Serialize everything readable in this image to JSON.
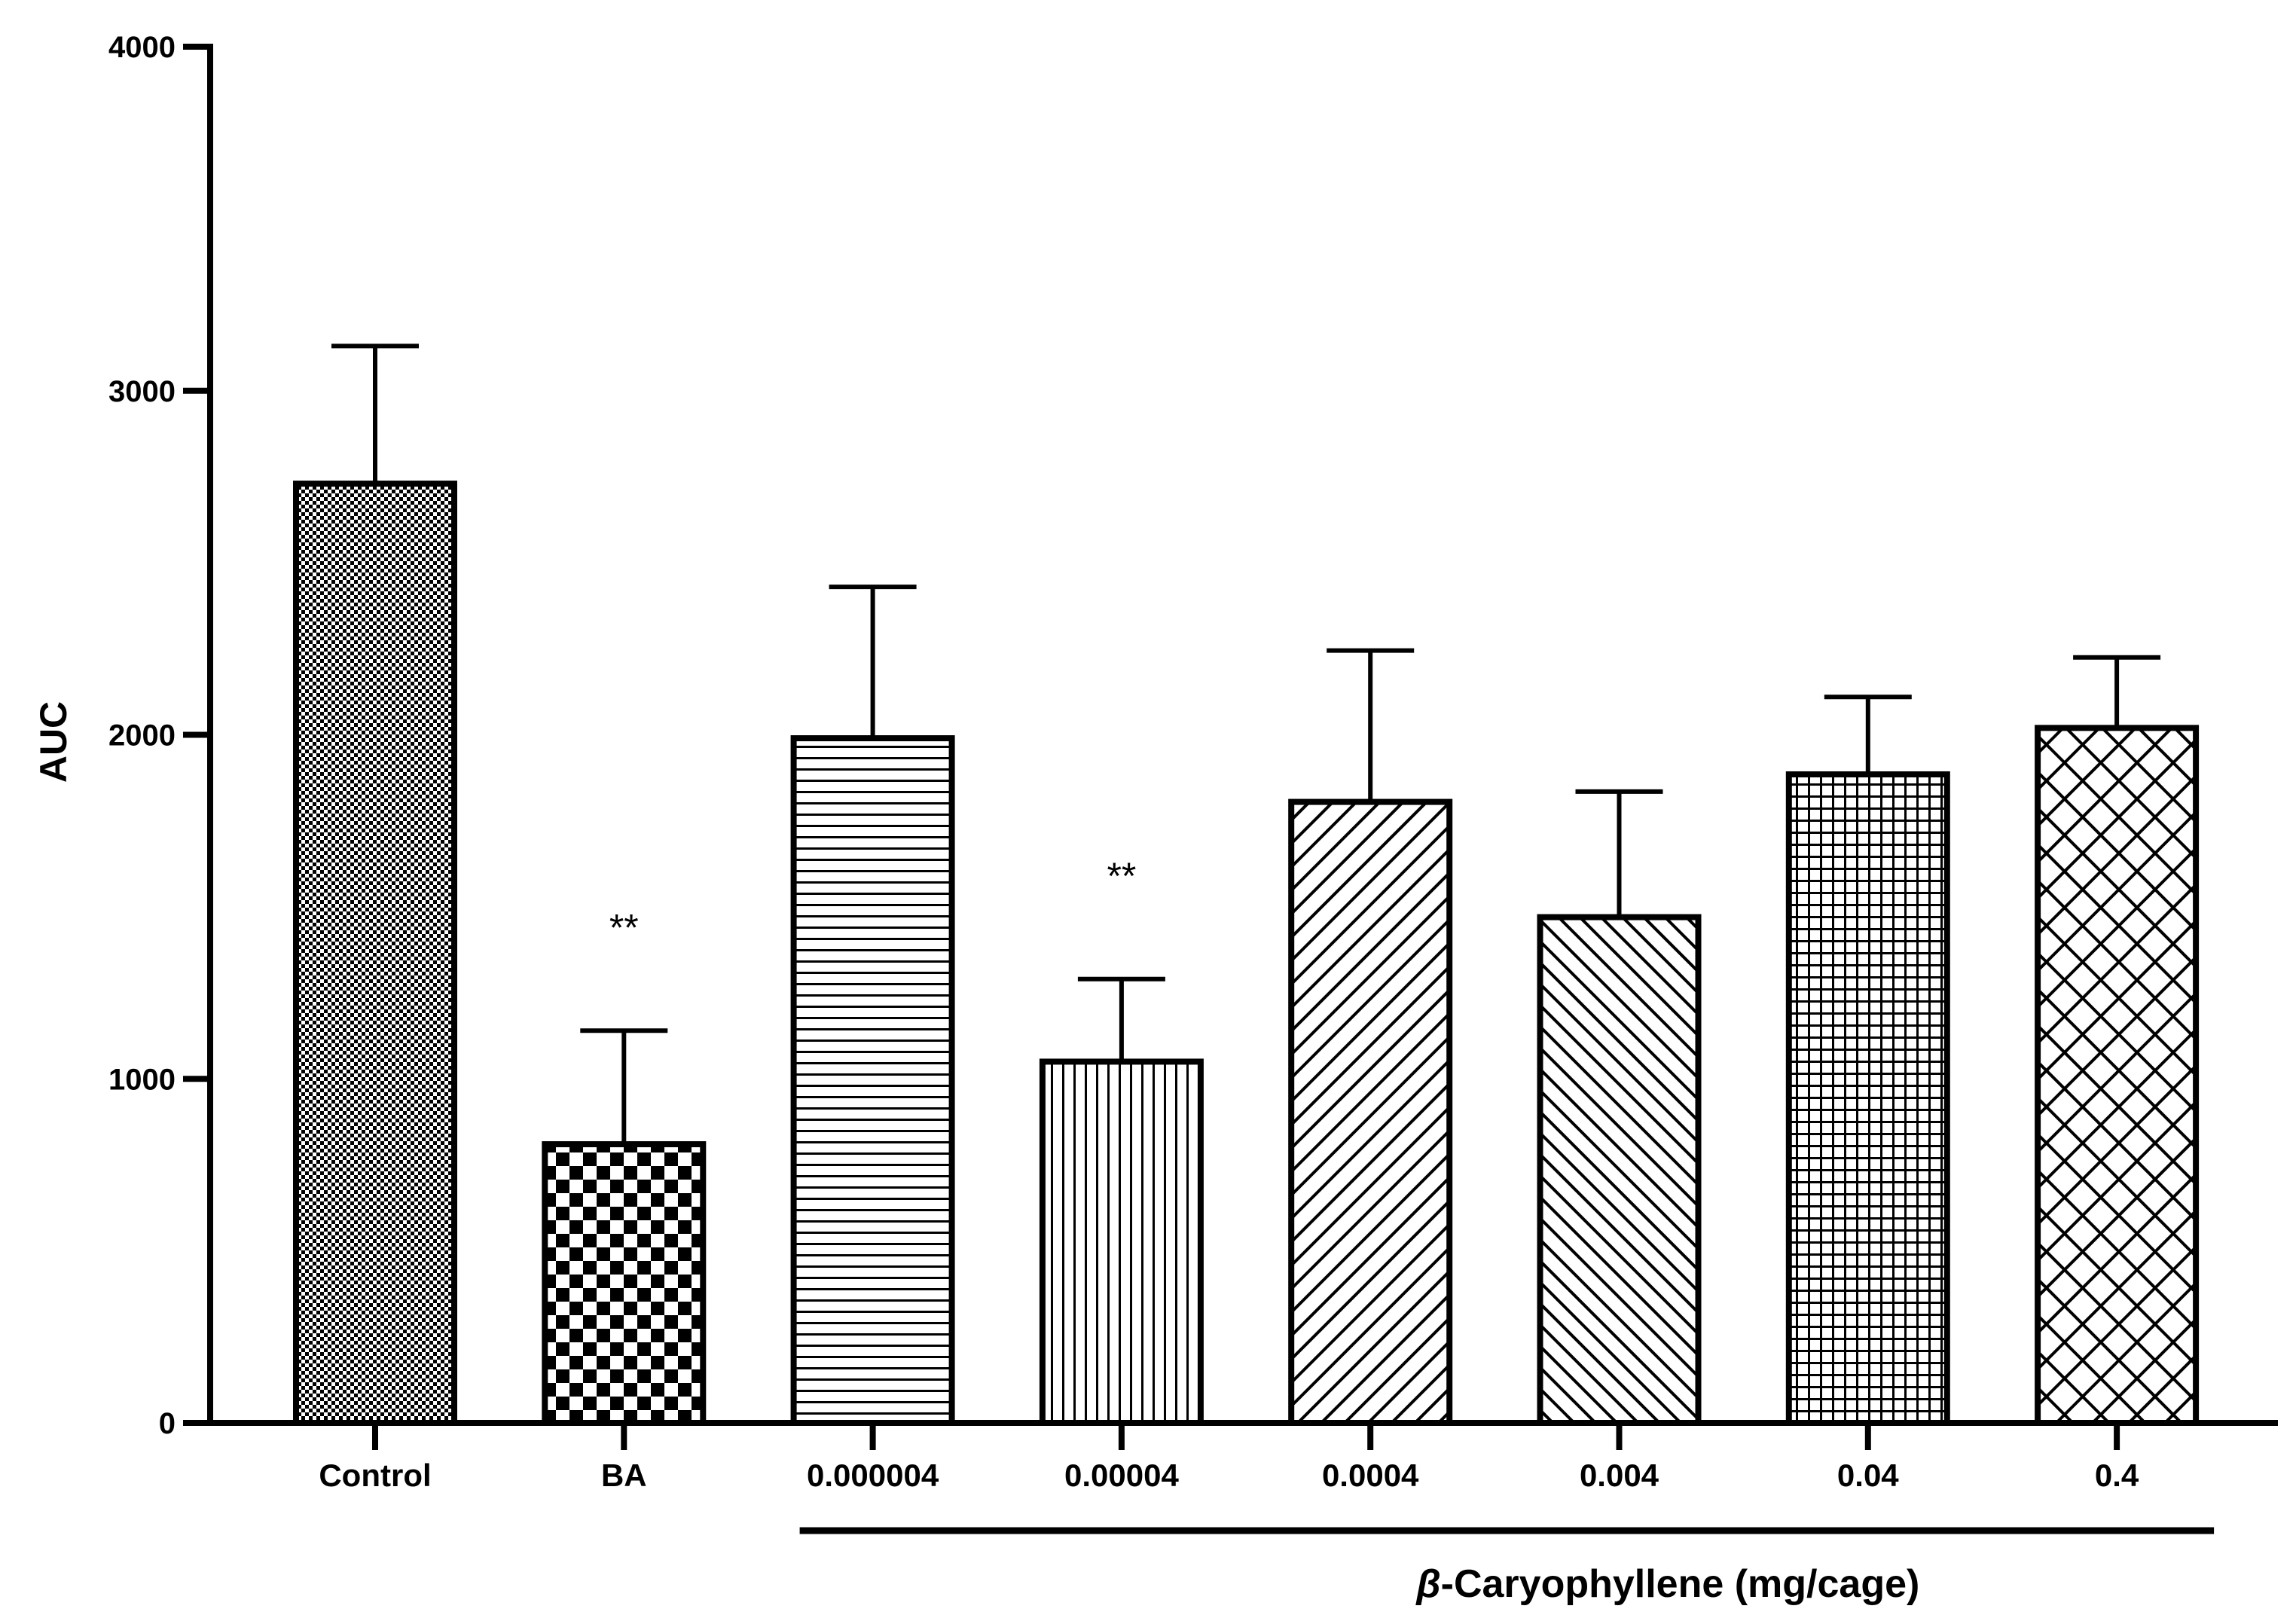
{
  "chart_data": {
    "type": "bar",
    "title": "",
    "xlabel": "",
    "ylabel": "AUC",
    "ylim": [
      0,
      4000
    ],
    "yticks": [
      0,
      1000,
      2000,
      3000,
      4000
    ],
    "ytick_labels": [
      "0",
      "1000",
      "2000",
      "3000",
      "4000"
    ],
    "grid": false,
    "categories": [
      "Control",
      "BA",
      "0.000004",
      "0.00004",
      "0.0004",
      "0.004",
      "0.04",
      "0.4"
    ],
    "values": [
      2730,
      810,
      1990,
      1050,
      1805,
      1470,
      1885,
      2020
    ],
    "errors": [
      400,
      330,
      440,
      240,
      440,
      365,
      225,
      205
    ],
    "patterns": [
      "fine-check",
      "coarse-check",
      "horizontal",
      "vertical",
      "diag-up",
      "diag-down",
      "grid",
      "diag-cross"
    ],
    "significance": [
      "",
      "**",
      "",
      "**",
      "",
      "",
      "",
      ""
    ],
    "group_label": {
      "prefix": "β",
      "text": "-Caryophyllene (mg/cage)",
      "spans_categories": [
        "0.000004",
        "0.4"
      ]
    }
  }
}
